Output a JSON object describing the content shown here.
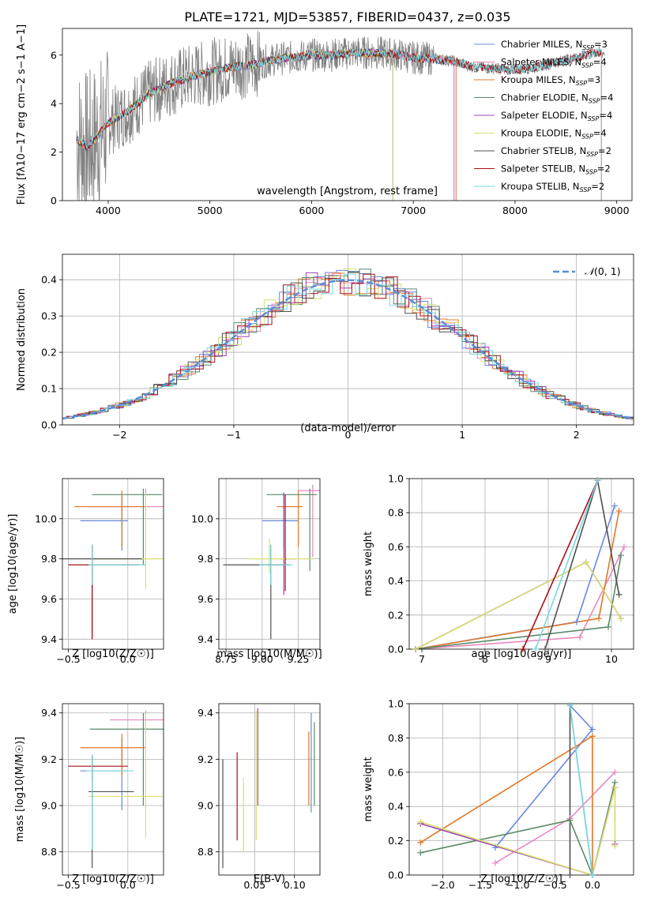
{
  "figure": {
    "title": "PLATE=1721, MJD=53857, FIBERID=0437, z=0.035"
  },
  "chart_data": [
    {
      "id": "spectrum",
      "type": "line",
      "xlabel": "wavelength [Angstrom, rest frame]",
      "ylabel_parts": [
        "Flux [f",
        "λ",
        "10",
        "−17",
        " erg cm",
        "−2",
        " s",
        "−1",
        " A",
        "−1",
        "]"
      ],
      "xlim": [
        3550,
        9150
      ],
      "ylim": [
        0,
        7.1
      ],
      "xticks": [
        4000,
        5000,
        6000,
        7000,
        8000,
        9000
      ],
      "yticks": [
        0,
        2,
        4,
        6
      ],
      "grid": false,
      "legend_placement": "top-right",
      "data_color": "#808080",
      "continuum_x": [
        3700,
        3800,
        3900,
        4000,
        4200,
        4400,
        4600,
        4800,
        5000,
        5200,
        5400,
        5600,
        5800,
        6000,
        6200,
        6400,
        6600,
        6800,
        7000,
        7200,
        7400,
        7600,
        7800,
        8000,
        8200,
        8400,
        8600,
        8800
      ],
      "continuum_y": [
        2.5,
        2.2,
        2.7,
        3.2,
        3.7,
        4.4,
        4.8,
        5.1,
        5.3,
        5.5,
        5.6,
        5.8,
        5.9,
        6.0,
        6.0,
        6.1,
        6.1,
        6.05,
        5.9,
        5.85,
        5.75,
        5.5,
        5.45,
        5.4,
        5.5,
        5.7,
        5.9,
        6.1
      ],
      "series": [
        {
          "name": "Chabrier MILES",
          "nssp": "=3",
          "color": "#6688dd",
          "end": 7400
        },
        {
          "name": "Salpeter MILES",
          "nssp": "=4",
          "color": "#e888c0",
          "end": 7400
        },
        {
          "name": "Kroupa MILES",
          "nssp": "=3",
          "color": "#e07828",
          "end": 7420
        },
        {
          "name": "Chabrier ELODIE",
          "nssp": "=4",
          "color": "#5a8a66",
          "end": 6800
        },
        {
          "name": "Salpeter ELODIE",
          "nssp": "=4",
          "color": "#a040b8",
          "end": 6800
        },
        {
          "name": "Kroupa ELODIE",
          "nssp": "=4",
          "color": "#d8e070",
          "end": 6800
        },
        {
          "name": "Chabrier STELIB",
          "nssp": "=2",
          "color": "#505050",
          "end": 8850
        },
        {
          "name": "Salpeter STELIB",
          "nssp": "=2",
          "color": "#aa1018",
          "end": 8850
        },
        {
          "name": "Kroupa STELIB",
          "nssp": "=2",
          "color": "#78d8e0",
          "end": 8850
        }
      ]
    },
    {
      "id": "residuals",
      "type": "line",
      "xlabel": "(data-model)/error",
      "ylabel": "Normed distribution",
      "xlim": [
        -2.5,
        2.5
      ],
      "ylim": [
        0,
        0.47
      ],
      "xticks": [
        -2,
        -1,
        0,
        1,
        2
      ],
      "yticks": [
        0.0,
        0.1,
        0.2,
        0.3,
        0.4
      ],
      "grid": true,
      "legend_placement": "top-right",
      "legend_label_plain": "(0, 1)",
      "legend_label_symbol": "𝒩",
      "normal_color": "#5b8bd4"
    },
    {
      "id": "age-vs-Z",
      "type": "scatter",
      "xlabel": "Z [log10(Z/Z☉)]",
      "ylabel": "age [log10(age/yr)]",
      "xlim": [
        -0.55,
        0.3
      ],
      "ylim": [
        9.35,
        10.2
      ],
      "xticks": [
        -0.5,
        0.0
      ],
      "yticks": [
        9.4,
        9.6,
        9.8,
        10.0
      ],
      "grid": true,
      "errorbars": [
        {
          "x": -0.05,
          "y": 9.99,
          "xerr": [
            0.35,
            0.05
          ],
          "yerr": [
            0.15,
            0.12
          ],
          "color": "#6688dd"
        },
        {
          "x": 0.15,
          "y": 10.06,
          "xerr": [
            0.48,
            0.22
          ],
          "yerr": [
            0.05,
            0.09
          ],
          "color": "#e888c0"
        },
        {
          "x": -0.05,
          "y": 10.06,
          "xerr": [
            0.4,
            0.2
          ],
          "yerr": [
            0.2,
            0.08
          ],
          "color": "#e07828"
        },
        {
          "x": 0.13,
          "y": 10.12,
          "xerr": [
            0.43,
            0.16
          ],
          "yerr": [
            0.35,
            0.03
          ],
          "color": "#5a8a66"
        },
        {
          "x": 0.15,
          "y": 9.8,
          "xerr": [
            0.5,
            0.15
          ],
          "yerr": [
            0.15,
            0.33
          ],
          "color": "#d8e070"
        },
        {
          "x": -0.3,
          "y": 9.8,
          "xerr": [
            0.25,
            0.42
          ],
          "yerr": [
            0.4,
            0.07
          ],
          "color": "#505050"
        },
        {
          "x": -0.3,
          "y": 9.77,
          "xerr": [
            0.2,
            0.4
          ],
          "yerr": [
            0.37,
            0.1
          ],
          "color": "#aa1018"
        },
        {
          "x": -0.3,
          "y": 9.77,
          "xerr": [
            0.03,
            0.45
          ],
          "yerr": [
            0.1,
            0.1
          ],
          "color": "#78d8e0"
        }
      ]
    },
    {
      "id": "age-vs-mass",
      "type": "scatter",
      "xlabel": "mass [log10(M/M☉)]",
      "ylabel": "",
      "xlim": [
        8.7,
        9.4
      ],
      "ylim": [
        9.35,
        10.2
      ],
      "xticks": [
        8.75,
        9.0,
        9.25
      ],
      "yticks": [
        9.4,
        9.6,
        9.8,
        10.0
      ],
      "grid": true,
      "errorbars": [
        {
          "x": 9.15,
          "y": 9.99,
          "xerr": [
            0.15,
            0.1
          ],
          "yerr": [
            0.14,
            0.14
          ],
          "color": "#6688dd"
        },
        {
          "x": 9.35,
          "y": 10.14,
          "xerr": [
            0.1,
            0.05
          ],
          "yerr": [
            0.33,
            0.03
          ],
          "color": "#e888c0"
        },
        {
          "x": 9.25,
          "y": 10.06,
          "xerr": [
            0.15,
            0.03
          ],
          "yerr": [
            0.2,
            0.08
          ],
          "color": "#e07828"
        },
        {
          "x": 9.33,
          "y": 10.12,
          "xerr": [
            0.3,
            0.05
          ],
          "yerr": [
            0.38,
            0.03
          ],
          "color": "#5a8a66"
        },
        {
          "x": 9.15,
          "y": 9.8,
          "xerr": [
            0.03,
            0.08
          ],
          "yerr": [
            0.18,
            0.33
          ],
          "color": "#a040b8"
        },
        {
          "x": 9.05,
          "y": 9.8,
          "xerr": [
            0.15,
            0.3
          ],
          "yerr": [
            0.07,
            0.1
          ],
          "color": "#d8e070"
        },
        {
          "x": 9.06,
          "y": 9.77,
          "xerr": [
            0.33,
            0.1
          ],
          "yerr": [
            0.37,
            0.1
          ],
          "color": "#505050"
        },
        {
          "x": 9.16,
          "y": 9.77,
          "xerr": [
            0.13,
            0.03
          ],
          "yerr": [
            0.13,
            0.35
          ],
          "color": "#aa1018"
        },
        {
          "x": 9.06,
          "y": 9.77,
          "xerr": [
            0.08,
            0.15
          ],
          "yerr": [
            0.1,
            0.1
          ],
          "color": "#78d8e0"
        }
      ]
    },
    {
      "id": "weight-vs-age",
      "type": "line",
      "xlabel": "age [log10(age/yr)]",
      "ylabel": "mass weight",
      "xlim": [
        6.8,
        10.35
      ],
      "ylim": [
        0,
        1
      ],
      "xticks": [
        7,
        8,
        9,
        10
      ],
      "yticks": [
        0.0,
        0.2,
        0.4,
        0.6,
        0.8,
        1.0
      ],
      "grid": true,
      "series": [
        {
          "color": "#6688dd",
          "points": [
            [
              6.9,
              0.0
            ],
            [
              9.45,
              0.16
            ],
            [
              10.05,
              0.84
            ]
          ]
        },
        {
          "color": "#e888c0",
          "points": [
            [
              6.9,
              0.0
            ],
            [
              9.5,
              0.07
            ],
            [
              10.2,
              0.6
            ]
          ]
        },
        {
          "color": "#e07828",
          "points": [
            [
              6.9,
              0.0
            ],
            [
              9.8,
              0.18
            ],
            [
              10.12,
              0.81
            ]
          ]
        },
        {
          "color": "#5a8a66",
          "points": [
            [
              6.9,
              0.0
            ],
            [
              9.95,
              0.13
            ],
            [
              10.15,
              0.55
            ]
          ]
        },
        {
          "color": "#a040b8",
          "points": [
            [
              6.9,
              0.0
            ],
            [
              9.6,
              0.51
            ],
            [
              10.15,
              0.18
            ]
          ]
        },
        {
          "color": "#d8e070",
          "points": [
            [
              6.9,
              0.0
            ],
            [
              9.6,
              0.51
            ],
            [
              10.15,
              0.18
            ]
          ]
        },
        {
          "color": "#505050",
          "points": [
            [
              8.95,
              0.0
            ],
            [
              9.78,
              0.99
            ],
            [
              10.12,
              0.32
            ]
          ]
        },
        {
          "color": "#aa1018",
          "points": [
            [
              8.6,
              0.0
            ],
            [
              9.78,
              0.99
            ]
          ]
        },
        {
          "color": "#78d8e0",
          "points": [
            [
              8.8,
              0.0
            ],
            [
              9.78,
              0.99
            ]
          ]
        }
      ]
    },
    {
      "id": "mass-vs-Z",
      "type": "scatter",
      "xlabel": "Z [log10(Z/Z☉)]",
      "ylabel": "mass [log10(M/M☉)]",
      "xlim": [
        -0.55,
        0.3
      ],
      "ylim": [
        8.7,
        9.44
      ],
      "xticks": [
        -0.5,
        0.0
      ],
      "yticks": [
        8.8,
        9.0,
        9.2,
        9.4
      ],
      "grid": true,
      "errorbars": [
        {
          "x": -0.05,
          "y": 9.15,
          "xerr": [
            0.35,
            0.05
          ],
          "yerr": [
            0.17,
            0.14
          ],
          "color": "#6688dd"
        },
        {
          "x": 0.15,
          "y": 9.37,
          "xerr": [
            0.3,
            0.15
          ],
          "yerr": [
            0.06,
            0.04
          ],
          "color": "#e888c0"
        },
        {
          "x": -0.05,
          "y": 9.25,
          "xerr": [
            0.35,
            0.2
          ],
          "yerr": [
            0.12,
            0.06
          ],
          "color": "#e07828"
        },
        {
          "x": 0.13,
          "y": 9.33,
          "xerr": [
            0.45,
            0.17
          ],
          "yerr": [
            0.33,
            0.07
          ],
          "color": "#5a8a66"
        },
        {
          "x": 0.15,
          "y": 9.04,
          "xerr": [
            0.48,
            0.15
          ],
          "yerr": [
            0.18,
            0.36
          ],
          "color": "#d8e070"
        },
        {
          "x": -0.3,
          "y": 9.06,
          "xerr": [
            0.03,
            0.35
          ],
          "yerr": [
            0.33,
            0.15
          ],
          "color": "#505050"
        },
        {
          "x": -0.3,
          "y": 9.17,
          "xerr": [
            0.2,
            0.3
          ],
          "yerr": [
            0.06,
            0.05
          ],
          "color": "#aa1018"
        },
        {
          "x": -0.3,
          "y": 9.15,
          "xerr": [
            0.05,
            0.35
          ],
          "yerr": [
            0.34,
            0.07
          ],
          "color": "#78d8e0"
        }
      ]
    },
    {
      "id": "mass-vs-EBV",
      "type": "scatter",
      "xlabel": "E(B-V)",
      "ylabel": "",
      "xlim": [
        0.005,
        0.132
      ],
      "ylim": [
        8.7,
        9.44
      ],
      "xticks": [
        0.05,
        0.1
      ],
      "xtick_labels": [
        "0.05",
        "0.10"
      ],
      "yticks": [
        8.8,
        9.0,
        9.2,
        9.4
      ],
      "grid": true,
      "errorbars": [
        {
          "x": 0.01,
          "y": 9.0,
          "yerr": [
            0.27,
            0.2
          ],
          "color": "#505050"
        },
        {
          "x": 0.028,
          "y": 9.05,
          "yerr": [
            0.2,
            0.18
          ],
          "color": "#aa1018"
        },
        {
          "x": 0.036,
          "y": 9.0,
          "yerr": [
            0.2,
            0.12
          ],
          "color": "#d8e070"
        },
        {
          "x": 0.052,
          "y": 9.05,
          "yerr": [
            0.2,
            0.36
          ],
          "color": "#d8e070"
        },
        {
          "x": 0.054,
          "y": 9.2,
          "yerr": [
            0.2,
            0.22
          ],
          "color": "#a040b8"
        },
        {
          "x": 0.118,
          "y": 9.2,
          "yerr": [
            0.2,
            0.12
          ],
          "color": "#e07828"
        },
        {
          "x": 0.121,
          "y": 9.2,
          "yerr": [
            0.23,
            0.2
          ],
          "color": "#6688dd"
        },
        {
          "x": 0.125,
          "y": 9.2,
          "yerr": [
            0.2,
            0.16
          ],
          "color": "#5a8a66"
        }
      ]
    },
    {
      "id": "weight-vs-Z",
      "type": "line",
      "xlabel": "Z [log10(Z/Z☉)]",
      "ylabel": "mass weight",
      "xlim": [
        -2.45,
        0.55
      ],
      "ylim": [
        0,
        1
      ],
      "xticks": [
        -2.0,
        -1.5,
        -1.0,
        -0.5,
        0.0
      ],
      "yticks": [
        0.0,
        0.2,
        0.4,
        0.6,
        0.8,
        1.0
      ],
      "grid": true,
      "series": [
        {
          "color": "#6688dd",
          "points": [
            [
              -1.3,
              0.16
            ],
            [
              0.0,
              0.85
            ],
            [
              -0.3,
              0.99
            ],
            [
              0.0,
              0.0
            ]
          ]
        },
        {
          "color": "#e888c0",
          "points": [
            [
              -1.3,
              0.07
            ],
            [
              -0.3,
              0.33
            ],
            [
              0.3,
              0.6
            ]
          ]
        },
        {
          "color": "#e07828",
          "points": [
            [
              -2.3,
              0.19
            ],
            [
              0.0,
              0.81
            ],
            [
              0.0,
              0.0
            ]
          ]
        },
        {
          "color": "#5a8a66",
          "points": [
            [
              -2.3,
              0.13
            ],
            [
              -0.3,
              0.32
            ],
            [
              0.0,
              0.0
            ],
            [
              0.3,
              0.54
            ]
          ]
        },
        {
          "color": "#a040b8",
          "points": [
            [
              -2.3,
              0.3
            ],
            [
              0.0,
              0.0
            ],
            [
              0.3,
              0.51
            ],
            [
              0.3,
              0.18
            ]
          ]
        },
        {
          "color": "#d8e070",
          "points": [
            [
              -2.3,
              0.31
            ],
            [
              0.0,
              0.0
            ],
            [
              0.3,
              0.51
            ],
            [
              0.3,
              0.17
            ]
          ]
        },
        {
          "color": "#505050",
          "points": [
            [
              -0.3,
              0.0
            ],
            [
              -0.3,
              0.99
            ]
          ]
        },
        {
          "color": "#78d8e0",
          "points": [
            [
              -0.3,
              0.99
            ],
            [
              0.0,
              0.0
            ]
          ]
        }
      ]
    }
  ]
}
